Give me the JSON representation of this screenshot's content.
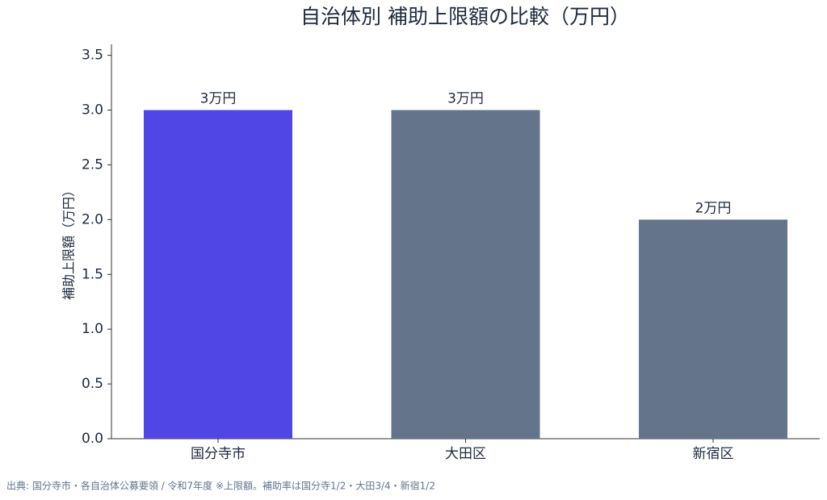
{
  "chart_data": {
    "type": "bar",
    "title": "自治体別 補助上限額の比較（万円）",
    "y_label": "補助上限額（万円）",
    "categories": [
      "国分寺市",
      "大田区",
      "新宿区"
    ],
    "values": [
      3,
      3,
      2
    ],
    "value_labels": [
      "3万円",
      "3万円",
      "2万円"
    ],
    "colors": [
      "#4f46e5",
      "#64748b",
      "#64748b"
    ],
    "ylim": [
      0,
      3.6
    ],
    "yticks": [
      {
        "value": 0,
        "label": "0.0"
      },
      0.5,
      {
        "value": 1,
        "label": "1.0"
      },
      1.5,
      {
        "value": 2,
        "label": "2.0"
      },
      2.5,
      {
        "value": 3,
        "label": "3.0"
      },
      3.5
    ],
    "grid": false,
    "source": "出典: 国分寺市・各自治体公募要領 / 令和7年度 ※上限額。補助率は国分寺1/2・大田3/4・新宿1/2"
  }
}
